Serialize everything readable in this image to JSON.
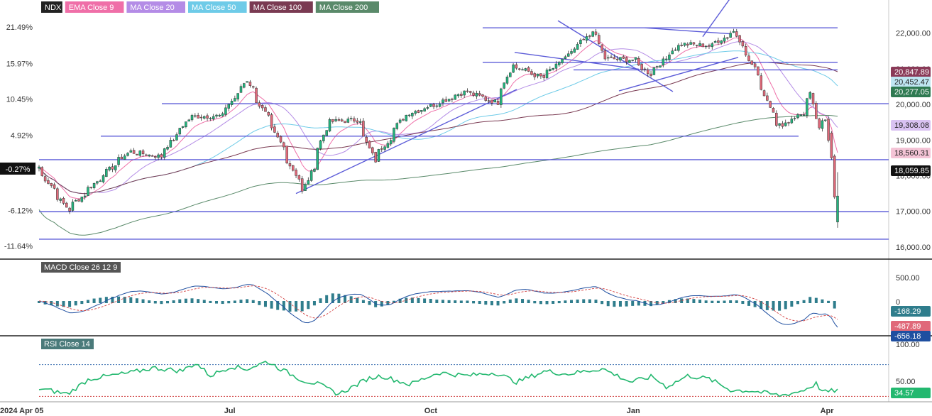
{
  "chart_data": {
    "type": "candlestick",
    "symbol": "NDX",
    "legend": [
      {
        "label": "NDX",
        "color": "#222222"
      },
      {
        "label": "EMA Close 9",
        "color": "#ef6fa8"
      },
      {
        "label": "MA Close 20",
        "color": "#b48ce6"
      },
      {
        "label": "MA Close 50",
        "color": "#6ecbe8"
      },
      {
        "label": "MA Close 100",
        "color": "#7a3a52"
      },
      {
        "label": "MA Close 200",
        "color": "#5a8a6a"
      }
    ],
    "price_axis": {
      "ticks": [
        "22,000.00",
        "21,000.00",
        "20,000.00",
        "19,000.00",
        "18,000.00",
        "17,000.00",
        "16,000.00"
      ],
      "range": [
        15800,
        22850
      ]
    },
    "pct_axis": {
      "ticks": [
        "21.49%",
        "15.97%",
        "10.45%",
        "4.92%",
        "-0.27%",
        "-6.12%",
        "-11.64%"
      ]
    },
    "date_axis": {
      "ticks": [
        "2024 Apr 05",
        "Jul",
        "Oct",
        "Jan",
        "Apr"
      ]
    },
    "price_badges": [
      {
        "value": "20,847.89",
        "series": "MA Close 100",
        "color": "#8a3a58"
      },
      {
        "value": "20,452.47",
        "series": "MA Close 50",
        "color": "#bfe6f2"
      },
      {
        "value": "20,277.05",
        "series": "MA Close 200",
        "color": "#2f7a52"
      },
      {
        "value": "19,308.08",
        "series": "MA Close 20",
        "color": "#d9c2f2"
      },
      {
        "value": "18,560.31",
        "series": "EMA Close 9",
        "color": "#f4c4d6"
      },
      {
        "value": "18,059.85",
        "series": "NDX",
        "color": "#111111"
      }
    ],
    "current_pct": "-0.27%",
    "horizontal_levels": [
      22150,
      21180,
      20970,
      20020,
      19110,
      18450,
      16990,
      16220
    ],
    "ohlc_anchor_closes": [
      [
        "2024-04-05",
        18250
      ],
      [
        "2024-04-19",
        17040
      ],
      [
        "2024-05-03",
        17900
      ],
      [
        "2024-05-17",
        18680
      ],
      [
        "2024-05-31",
        18540
      ],
      [
        "2024-06-14",
        19660
      ],
      [
        "2024-06-28",
        19680
      ],
      [
        "2024-07-10",
        20680
      ],
      [
        "2024-07-24",
        19050
      ],
      [
        "2024-08-05",
        17540
      ],
      [
        "2024-08-16",
        19510
      ],
      [
        "2024-08-30",
        19570
      ],
      [
        "2024-09-06",
        18420
      ],
      [
        "2024-09-20",
        19700
      ],
      [
        "2024-10-04",
        20010
      ],
      [
        "2024-10-18",
        20370
      ],
      [
        "2024-11-01",
        20050
      ],
      [
        "2024-11-08",
        21100
      ],
      [
        "2024-11-22",
        20750
      ],
      [
        "2024-12-06",
        21500
      ],
      [
        "2024-12-16",
        22100
      ],
      [
        "2024-12-20",
        21290
      ],
      [
        "2025-01-03",
        21250
      ],
      [
        "2025-01-10",
        20850
      ],
      [
        "2025-01-24",
        21700
      ],
      [
        "2025-02-07",
        21650
      ],
      [
        "2025-02-18",
        22050
      ],
      [
        "2025-02-28",
        20880
      ],
      [
        "2025-03-10",
        19380
      ],
      [
        "2025-03-21",
        19750
      ],
      [
        "2025-03-25",
        20280
      ],
      [
        "2025-03-28",
        19280
      ],
      [
        "2025-04-01",
        19580
      ],
      [
        "2025-04-03",
        18520
      ],
      [
        "2025-04-04",
        17400
      ],
      [
        "2025-04-07",
        17090
      ]
    ],
    "macd": {
      "label": "MACD Close 26 12 9",
      "axis_ticks": [
        "500.00",
        "0"
      ],
      "values": {
        "macd": "-656.18",
        "signal": "-487.89",
        "histogram": "-168.29"
      }
    },
    "rsi": {
      "label": "RSI Close 14",
      "axis_ticks": [
        "100.00",
        "50.00"
      ],
      "overbought": 70,
      "oversold": 30,
      "value": "34.57",
      "series_anchors": [
        [
          0,
          40
        ],
        [
          0.04,
          33
        ],
        [
          0.07,
          52
        ],
        [
          0.13,
          60
        ],
        [
          0.16,
          66
        ],
        [
          0.2,
          62
        ],
        [
          0.22,
          72
        ],
        [
          0.24,
          56
        ],
        [
          0.27,
          68
        ],
        [
          0.29,
          64
        ],
        [
          0.32,
          74
        ],
        [
          0.34,
          64
        ],
        [
          0.37,
          50
        ],
        [
          0.39,
          46
        ],
        [
          0.42,
          33
        ],
        [
          0.44,
          42
        ],
        [
          0.46,
          52
        ],
        [
          0.48,
          56
        ],
        [
          0.52,
          45
        ],
        [
          0.56,
          60
        ],
        [
          0.6,
          56
        ],
        [
          0.64,
          60
        ],
        [
          0.67,
          48
        ],
        [
          0.71,
          62
        ],
        [
          0.74,
          58
        ],
        [
          0.79,
          65
        ],
        [
          0.83,
          48
        ],
        [
          0.86,
          55
        ],
        [
          0.88,
          42
        ],
        [
          0.91,
          56
        ],
        [
          0.94,
          52
        ],
        [
          0.97,
          38
        ],
        [
          1.0,
          37
        ],
        [
          1.02,
          34
        ],
        [
          1.04,
          31
        ],
        [
          1.07,
          37
        ],
        [
          1.09,
          46
        ],
        [
          1.1,
          35
        ],
        [
          1.12,
          38
        ]
      ]
    }
  }
}
